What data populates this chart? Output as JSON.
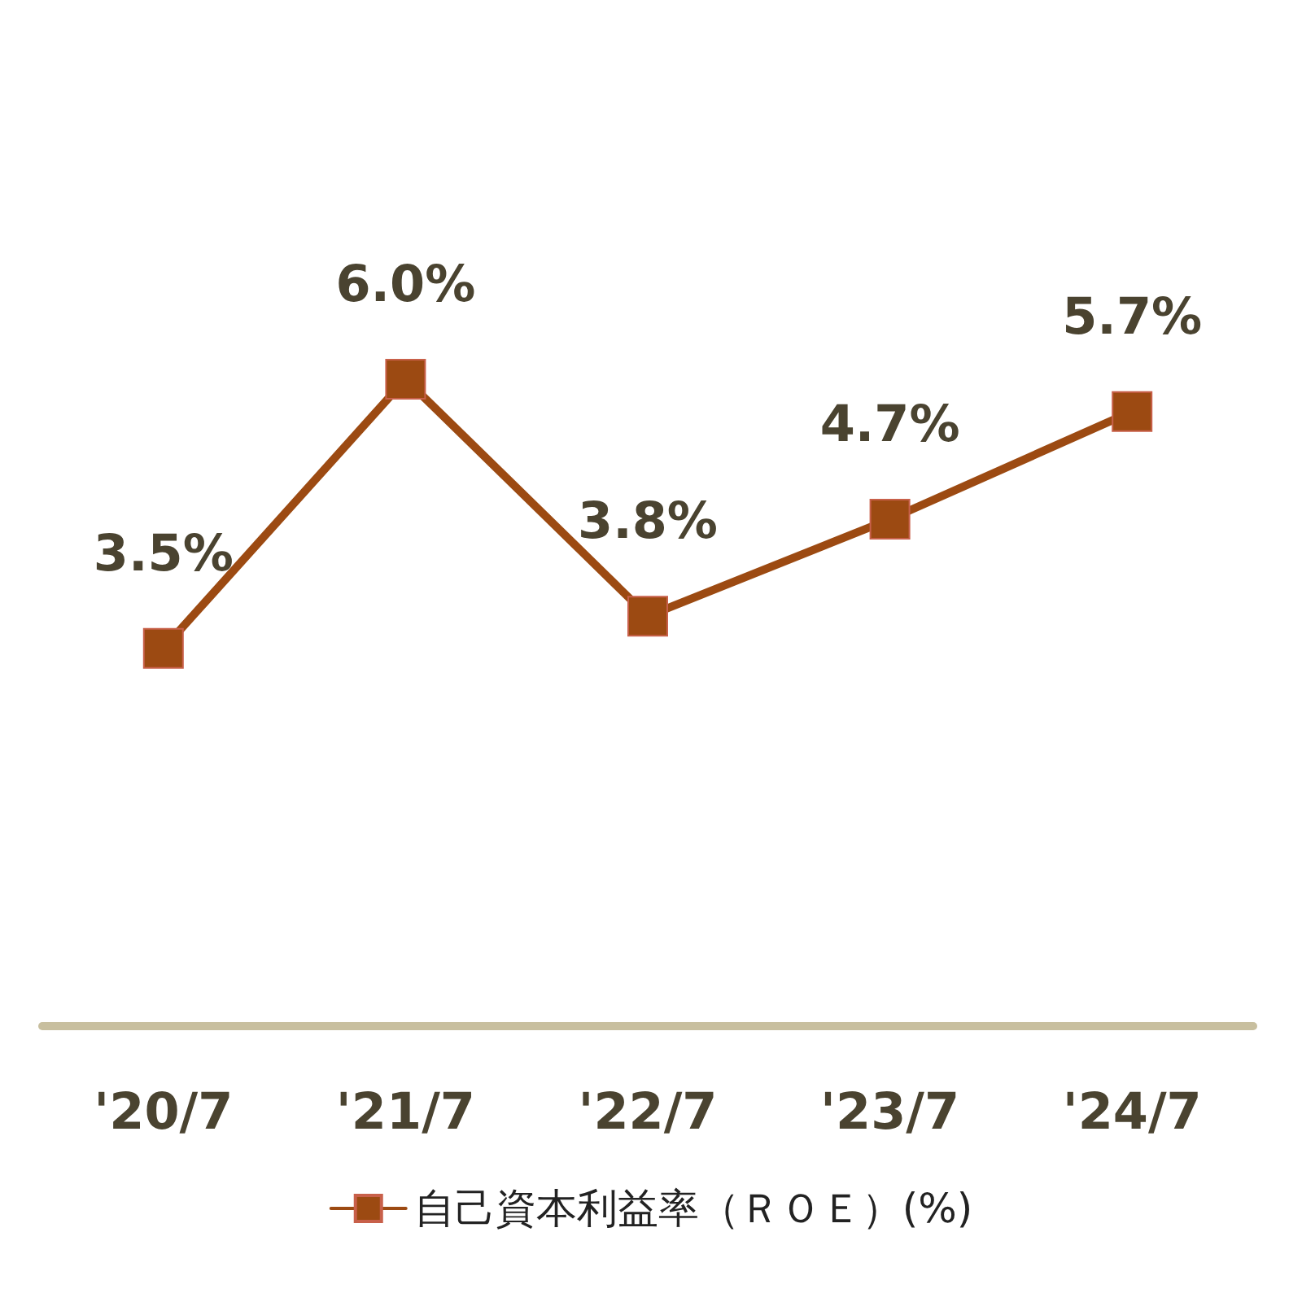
{
  "chart_data": {
    "type": "line",
    "categories": [
      "'20/7",
      "'21/7",
      "'22/7",
      "'23/7",
      "'24/7"
    ],
    "series": [
      {
        "name": "自己資本利益率（ＲＯＥ）(%)",
        "color": "#9c4a12",
        "values": [
          3.5,
          6.0,
          3.8,
          4.7,
          5.7
        ],
        "value_labels": [
          "3.5%",
          "6.0%",
          "3.8%",
          "4.7%",
          "5.7%"
        ]
      }
    ],
    "marker": "square",
    "legend": "bottom",
    "grid": false
  }
}
